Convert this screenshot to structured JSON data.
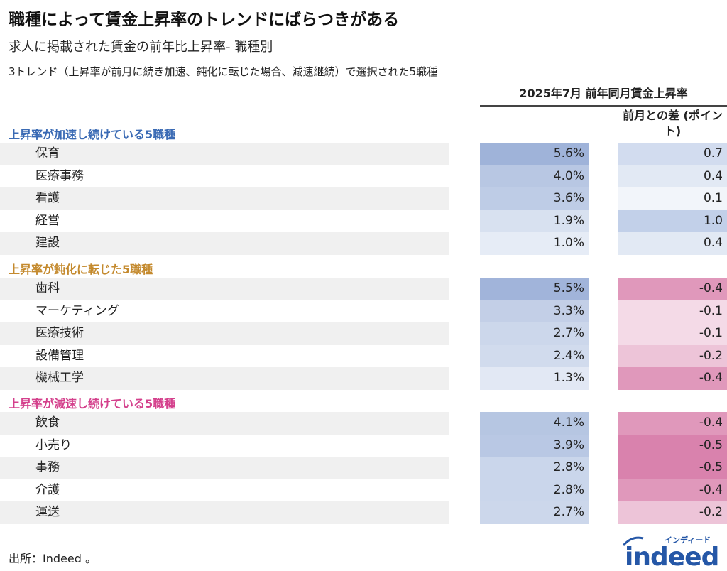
{
  "chart_data": {
    "type": "table",
    "title": "職種によって賃金上昇率のトレンドにばらつきがある",
    "subtitle": "求人に掲載された賃金の前年比上昇率- 職種別",
    "note": "3トレンド（上昇率が前月に続き加速、鈍化に転じた場合、減速継続）で選択された5職種",
    "header": "2025年7月 前年同月賃金上昇率",
    "diff_header": "前月との差 (ポイント)",
    "groups": [
      {
        "label": "上昇率が加速し続けている5職種",
        "color": "#3a6ab4",
        "rows": [
          {
            "name": "保育",
            "rate": "5.6%",
            "diff": "0.7"
          },
          {
            "name": "医療事務",
            "rate": "4.0%",
            "diff": "0.4"
          },
          {
            "name": "看護",
            "rate": "3.6%",
            "diff": "0.1"
          },
          {
            "name": "経営",
            "rate": "1.9%",
            "diff": "1.0"
          },
          {
            "name": "建設",
            "rate": "1.0%",
            "diff": "0.4"
          }
        ]
      },
      {
        "label": "上昇率が鈍化に転じた5職種",
        "color": "#c48a2e",
        "rows": [
          {
            "name": "歯科",
            "rate": "5.5%",
            "diff": "-0.4"
          },
          {
            "name": "マーケティング",
            "rate": "3.3%",
            "diff": "-0.1"
          },
          {
            "name": "医療技術",
            "rate": "2.7%",
            "diff": "-0.1"
          },
          {
            "name": "設備管理",
            "rate": "2.4%",
            "diff": "-0.2"
          },
          {
            "name": "機械工学",
            "rate": "1.3%",
            "diff": "-0.4"
          }
        ]
      },
      {
        "label": "上昇率が減速し続けている5職種",
        "color": "#d4408c",
        "rows": [
          {
            "name": "飲食",
            "rate": "4.1%",
            "diff": "-0.4"
          },
          {
            "name": "小売り",
            "rate": "3.9%",
            "diff": "-0.5"
          },
          {
            "name": "事務",
            "rate": "2.8%",
            "diff": "-0.5"
          },
          {
            "name": "介護",
            "rate": "2.8%",
            "diff": "-0.4"
          },
          {
            "name": "運送",
            "rate": "2.7%",
            "diff": "-0.2"
          }
        ]
      }
    ],
    "colors": {
      "positive": "#9fb3d9",
      "negative": "#d982ad",
      "stripe": "#f0f0f0"
    }
  },
  "source": "出所：Indeed 。",
  "logo": {
    "text": "indeed",
    "kana": "インディード",
    "color": "#2557a7"
  }
}
